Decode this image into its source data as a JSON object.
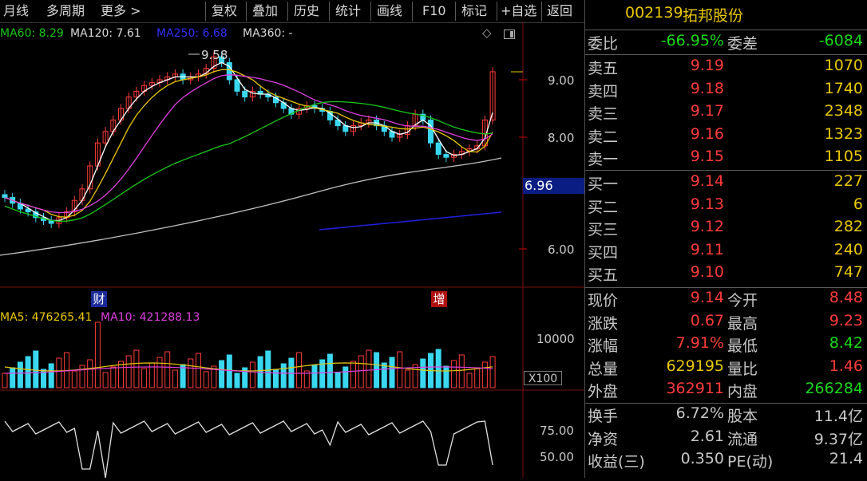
{
  "toolbar": {
    "items": [
      "月线",
      "多周期",
      "更多 >",
      "复权",
      "叠加",
      "历史",
      "统计",
      "画线",
      "F10",
      "标记",
      "+自选",
      "返回"
    ]
  },
  "price_ma": {
    "ma60": "MA60: 8.29",
    "ma120": "MA120: 7.61",
    "ma250": "MA250: 6.68",
    "ma360": "MA360: -"
  },
  "price_axis": [
    "9.00",
    "8.00",
    "6.00"
  ],
  "current_price_tag": "6.96",
  "peak_label": "9.58",
  "event_labels": {
    "cai": "财",
    "zeng": "增"
  },
  "volume": {
    "ma5": "MA5: 476265.41",
    "ma10": "MA10: 421288.13",
    "axis_label": "10000",
    "unit": "X100"
  },
  "indicator_axis": [
    "75.00",
    "50.00"
  ],
  "quote": {
    "code": "002139",
    "name": "拓邦股份",
    "weibi_label": "委比",
    "weibi": "-66.95%",
    "weicha_label": "委差",
    "weicha": "-6084",
    "asks": [
      {
        "label": "卖五",
        "price": "9.19",
        "vol": "1070"
      },
      {
        "label": "卖四",
        "price": "9.18",
        "vol": "1740"
      },
      {
        "label": "卖三",
        "price": "9.17",
        "vol": "2348"
      },
      {
        "label": "卖二",
        "price": "9.16",
        "vol": "1323"
      },
      {
        "label": "卖一",
        "price": "9.15",
        "vol": "1105"
      }
    ],
    "bids": [
      {
        "label": "买一",
        "price": "9.14",
        "vol": "227"
      },
      {
        "label": "买二",
        "price": "9.13",
        "vol": "6"
      },
      {
        "label": "买三",
        "price": "9.12",
        "vol": "282"
      },
      {
        "label": "买四",
        "price": "9.11",
        "vol": "240"
      },
      {
        "label": "买五",
        "price": "9.10",
        "vol": "747"
      }
    ],
    "stats": [
      {
        "l1": "现价",
        "v1": "9.14",
        "c1": "r",
        "l2": "今开",
        "v2": "8.48",
        "c2": "r"
      },
      {
        "l1": "涨跌",
        "v1": "0.67",
        "c1": "r",
        "l2": "最高",
        "v2": "9.23",
        "c2": "r"
      },
      {
        "l1": "涨幅",
        "v1": "7.91%",
        "c1": "r",
        "l2": "最低",
        "v2": "8.42",
        "c2": "g"
      },
      {
        "l1": "总量",
        "v1": "629195",
        "c1": "y",
        "l2": "量比",
        "v2": "1.46",
        "c2": "r"
      },
      {
        "l1": "外盘",
        "v1": "362911",
        "c1": "r",
        "l2": "内盘",
        "v2": "266284",
        "c2": "g"
      }
    ],
    "fund": [
      {
        "l1": "换手",
        "v1": "6.72%",
        "l2": "股本",
        "v2": "11.4亿"
      },
      {
        "l1": "净资",
        "v1": "2.61",
        "l2": "流通",
        "v2": "9.37亿"
      },
      {
        "l1": "收益(三)",
        "v1": "0.350",
        "l2": "PE(动)",
        "v2": "21.4"
      }
    ]
  },
  "colors": {
    "up": "#ff3b3b",
    "down": "#3ad8f0",
    "ma5": "#ffffff",
    "ma10": "#e8c800",
    "ma20": "#e040e0",
    "ma60": "#19c819",
    "ma120": "#c0c0c0",
    "ma250": "#2020e0"
  }
}
